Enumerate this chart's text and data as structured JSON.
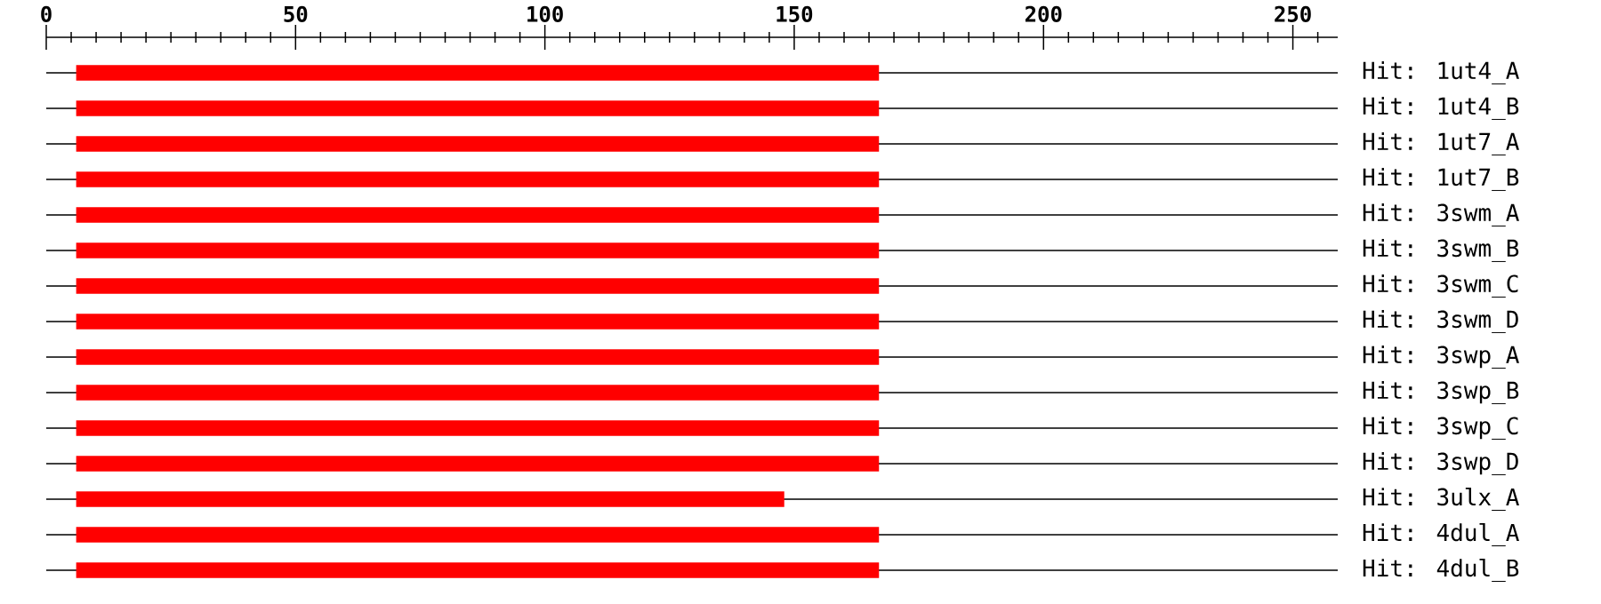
{
  "chart_data": {
    "type": "bar",
    "orientation": "horizontal",
    "categories": [
      "Hit: 1ut4_A",
      "Hit: 1ut4_B",
      "Hit: 1ut7_A",
      "Hit: 1ut7_B",
      "Hit: 3swm_A",
      "Hit: 3swm_B",
      "Hit: 3swm_C",
      "Hit: 3swm_D",
      "Hit: 3swp_A",
      "Hit: 3swp_B",
      "Hit: 3swp_C",
      "Hit: 3swp_D",
      "Hit: 3ulx_A",
      "Hit: 4dul_A",
      "Hit: 4dul_B"
    ],
    "series": [
      {
        "color": "#ff0000",
        "base": [
          6,
          6,
          6,
          6,
          6,
          6,
          6,
          6,
          6,
          6,
          6,
          6,
          6,
          6,
          6
        ],
        "values": [
          161,
          161,
          161,
          161,
          161,
          161,
          161,
          161,
          161,
          161,
          161,
          161,
          142,
          161,
          161
        ]
      }
    ],
    "grid": "y",
    "xlim": [
      0,
      259
    ],
    "xticks": [
      0,
      {
        "value": 5,
        "label": null
      },
      {
        "value": 10,
        "label": null
      },
      {
        "value": 15,
        "label": null
      },
      {
        "value": 20,
        "label": null
      },
      {
        "value": 25,
        "label": null
      },
      {
        "value": 30,
        "label": null
      },
      {
        "value": 35,
        "label": null
      },
      {
        "value": 40,
        "label": null
      },
      {
        "value": 45,
        "label": null
      },
      50,
      {
        "value": 55,
        "label": null
      },
      {
        "value": 60,
        "label": null
      },
      {
        "value": 65,
        "label": null
      },
      {
        "value": 70,
        "label": null
      },
      {
        "value": 75,
        "label": null
      },
      {
        "value": 80,
        "label": null
      },
      {
        "value": 85,
        "label": null
      },
      {
        "value": 90,
        "label": null
      },
      {
        "value": 95,
        "label": null
      },
      100,
      {
        "value": 105,
        "label": null
      },
      {
        "value": 110,
        "label": null
      },
      {
        "value": 115,
        "label": null
      },
      {
        "value": 120,
        "label": null
      },
      {
        "value": 125,
        "label": null
      },
      {
        "value": 130,
        "label": null
      },
      {
        "value": 135,
        "label": null
      },
      {
        "value": 140,
        "label": null
      },
      {
        "value": 145,
        "label": null
      },
      150,
      {
        "value": 155,
        "label": null
      },
      {
        "value": 160,
        "label": null
      },
      {
        "value": 165,
        "label": null
      },
      {
        "value": 170,
        "label": null
      },
      {
        "value": 175,
        "label": null
      },
      {
        "value": 180,
        "label": null
      },
      {
        "value": 185,
        "label": null
      },
      {
        "value": 190,
        "label": null
      },
      {
        "value": 195,
        "label": null
      },
      200,
      {
        "value": 205,
        "label": null
      },
      {
        "value": 210,
        "label": null
      },
      {
        "value": 215,
        "label": null
      },
      {
        "value": 220,
        "label": null
      },
      {
        "value": 225,
        "label": null
      },
      {
        "value": 230,
        "label": null
      },
      {
        "value": 235,
        "label": null
      },
      {
        "value": 240,
        "label": null
      },
      {
        "value": 245,
        "label": null
      },
      250,
      {
        "value": 255,
        "label": null
      }
    ]
  }
}
